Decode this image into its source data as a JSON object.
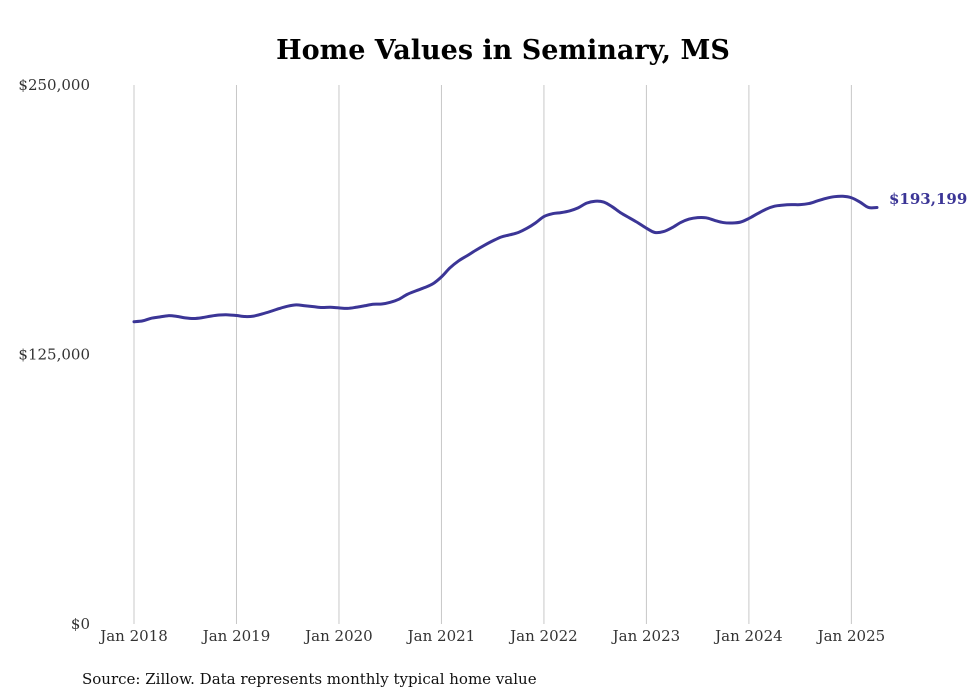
{
  "chart_data": {
    "type": "line",
    "title": "Home Values in Seminary, MS",
    "xlabel": "",
    "ylabel": "",
    "ylim": [
      0,
      250000
    ],
    "xlim": [
      "2018-01",
      "2025-04"
    ],
    "grid": {
      "vertical": true,
      "horizontal": false
    },
    "line_color": "#3b3596",
    "y_ticks": [
      {
        "value": 0,
        "label": "$0"
      },
      {
        "value": 125000,
        "label": "$125,000"
      },
      {
        "value": 250000,
        "label": "$250,000"
      }
    ],
    "x_ticks": [
      {
        "value": "2018-01",
        "label": "Jan 2018"
      },
      {
        "value": "2019-01",
        "label": "Jan 2019"
      },
      {
        "value": "2020-01",
        "label": "Jan 2020"
      },
      {
        "value": "2021-01",
        "label": "Jan 2021"
      },
      {
        "value": "2022-01",
        "label": "Jan 2022"
      },
      {
        "value": "2023-01",
        "label": "Jan 2023"
      },
      {
        "value": "2024-01",
        "label": "Jan 2024"
      },
      {
        "value": "2025-01",
        "label": "Jan 2025"
      }
    ],
    "end_label": "$193,199",
    "source": "Source: Zillow. Data represents monthly typical home value",
    "series": [
      {
        "x": [
          "2018-01",
          "2018-02",
          "2018-03",
          "2018-04",
          "2018-05",
          "2018-06",
          "2018-07",
          "2018-08",
          "2018-09",
          "2018-10",
          "2018-11",
          "2018-12",
          "2019-01",
          "2019-02",
          "2019-03",
          "2019-04",
          "2019-05",
          "2019-06",
          "2019-07",
          "2019-08",
          "2019-09",
          "2019-10",
          "2019-11",
          "2019-12",
          "2020-01",
          "2020-02",
          "2020-03",
          "2020-04",
          "2020-05",
          "2020-06",
          "2020-07",
          "2020-08",
          "2020-09",
          "2020-10",
          "2020-11",
          "2020-12",
          "2021-01",
          "2021-02",
          "2021-03",
          "2021-04",
          "2021-05",
          "2021-06",
          "2021-07",
          "2021-08",
          "2021-09",
          "2021-10",
          "2021-11",
          "2021-12",
          "2022-01",
          "2022-02",
          "2022-03",
          "2022-04",
          "2022-05",
          "2022-06",
          "2022-07",
          "2022-08",
          "2022-09",
          "2022-10",
          "2022-11",
          "2022-12",
          "2023-01",
          "2023-02",
          "2023-03",
          "2023-04",
          "2023-05",
          "2023-06",
          "2023-07",
          "2023-08",
          "2023-09",
          "2023-10",
          "2023-11",
          "2023-12",
          "2024-01",
          "2024-02",
          "2024-03",
          "2024-04",
          "2024-05",
          "2024-06",
          "2024-07",
          "2024-08",
          "2024-09",
          "2024-10",
          "2024-11",
          "2024-12",
          "2025-01",
          "2025-02",
          "2025-03",
          "2025-04"
        ],
        "values": [
          140200,
          140600,
          141800,
          142400,
          143000,
          142700,
          142000,
          141700,
          142100,
          142800,
          143300,
          143400,
          143100,
          142600,
          142800,
          143800,
          145000,
          146300,
          147400,
          148000,
          147600,
          147200,
          146800,
          146900,
          146600,
          146400,
          146900,
          147600,
          148300,
          148400,
          149200,
          150600,
          152900,
          154500,
          156000,
          157800,
          161000,
          165200,
          168400,
          170800,
          173300,
          175600,
          177700,
          179500,
          180500,
          181600,
          183500,
          186000,
          189000,
          190300,
          190800,
          191600,
          193000,
          195200,
          196100,
          195700,
          193500,
          190700,
          188400,
          186100,
          183600,
          181600,
          182000,
          183800,
          186200,
          187800,
          188500,
          188400,
          187200,
          186200,
          186000,
          186400,
          188100,
          190300,
          192400,
          193800,
          194300,
          194500,
          194500,
          195000,
          196200,
          197400,
          198200,
          198400,
          197700,
          195700,
          193199,
          193199
        ]
      }
    ]
  }
}
